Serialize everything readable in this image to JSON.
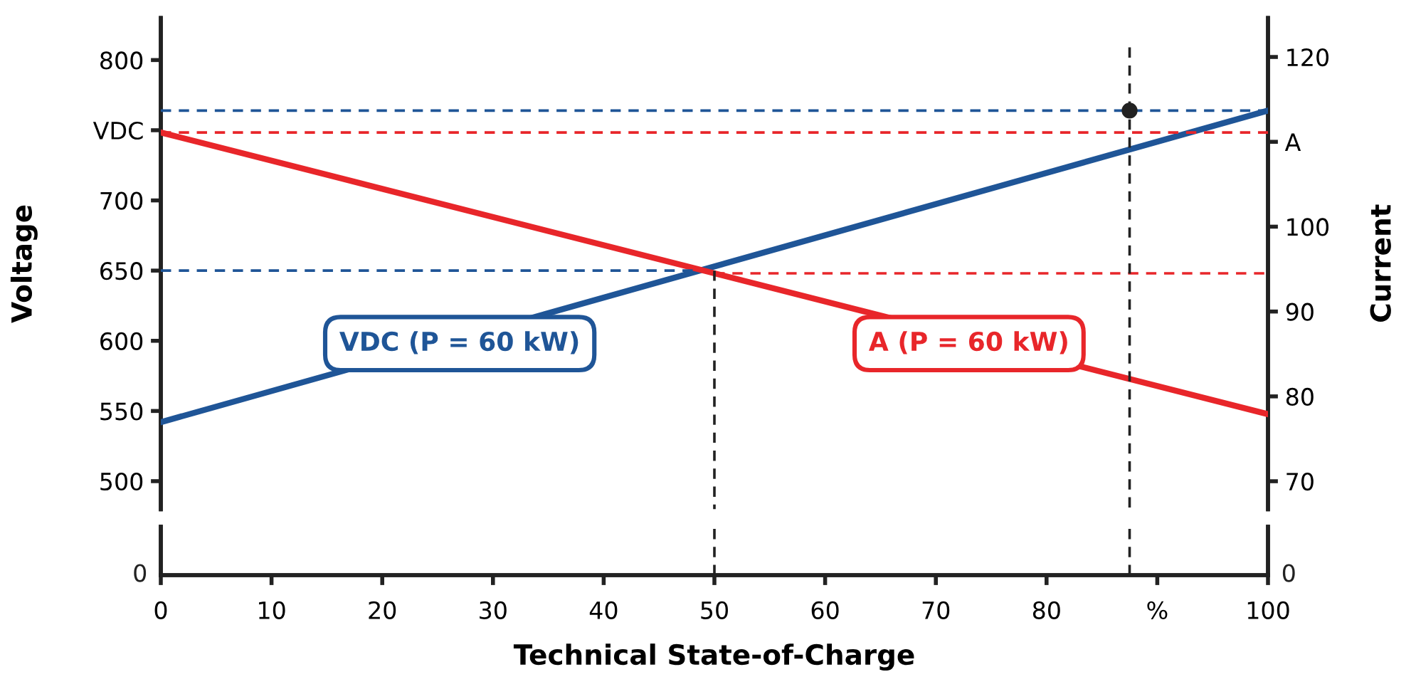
{
  "chart_data": {
    "type": "line",
    "ylabel": "Voltage",
    "y2label": "Current",
    "xlabel": "Technical State-of-Charge",
    "xlim": [
      0,
      100
    ],
    "xticks": [
      0,
      10,
      20,
      30,
      40,
      50,
      60,
      70,
      80,
      {
        "value": 90,
        "label": "%"
      },
      100
    ],
    "ylim": [
      480,
      830
    ],
    "yticks": [
      500,
      550,
      600,
      650,
      700,
      {
        "value": 750,
        "label": "VDC"
      },
      800
    ],
    "y2lim": [
      66.7,
      124.6
    ],
    "y2ticks": [
      70,
      80,
      90,
      100,
      {
        "value": 110,
        "label": "A"
      },
      120
    ],
    "series": [
      {
        "color": "#1f5597",
        "x": [
          0,
          100
        ],
        "values": [
          542,
          764
        ]
      },
      {
        "color": "#e8262a",
        "x": [
          0,
          100
        ],
        "values": [
          111.1,
          77.9
        ],
        "axis": "y2"
      },
      {
        "color": "#1f5597",
        "line_style": "dashed",
        "x": [
          0,
          100
        ],
        "values": [
          764,
          764
        ]
      },
      {
        "color": "#1f5597",
        "line_style": "dashed",
        "x": [
          0,
          48.7
        ],
        "values": [
          650,
          650
        ]
      },
      {
        "color": "#e8262a",
        "line_style": "dashed",
        "x": [
          0,
          100
        ],
        "values": [
          111.1,
          111.1
        ],
        "axis": "y2"
      },
      {
        "color": "#e8262a",
        "line_style": "dashed",
        "x": [
          50,
          100
        ],
        "values": [
          94.5,
          94.5
        ],
        "axis": "y2"
      },
      {
        "color": "#222222",
        "line_style": "dashed",
        "x": [
          50,
          50
        ],
        "values": [
          650,
          480
        ]
      },
      {
        "color": "#222222",
        "line_style": "dashed",
        "x": [
          87.5,
          87.5
        ],
        "values": [
          809,
          480
        ]
      },
      {
        "type": "scatter",
        "color": "#222222",
        "marker": "circle",
        "x": [
          87.5
        ],
        "values": [
          764
        ]
      }
    ],
    "annotations": [
      {
        "text": "VDC (P = 60 kW)",
        "x": 27,
        "y": 598
      },
      {
        "text": "A (P = 60 kW)",
        "x": 73,
        "y": 598
      },
      "0",
      "0"
    ]
  }
}
